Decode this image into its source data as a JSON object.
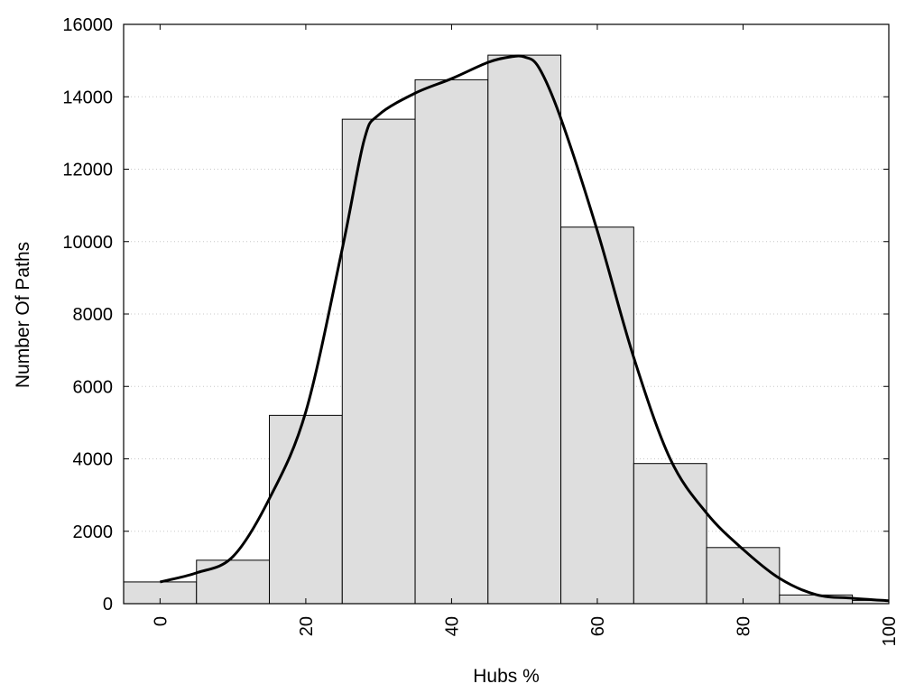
{
  "chart_data": {
    "type": "bar",
    "title": "",
    "xlabel": "Hubs %",
    "ylabel": "Number Of Paths",
    "xlim": [
      -5,
      100
    ],
    "ylim": [
      0,
      16000
    ],
    "xticks": [
      "0",
      "20",
      "40",
      "60",
      "80",
      "100"
    ],
    "yticks": [
      "0",
      "2000",
      "4000",
      "6000",
      "8000",
      "10000",
      "12000",
      "14000",
      "16000"
    ],
    "grid": "horizontal dotted",
    "legend": "none",
    "bin_width": 10,
    "bins": [
      {
        "center": 0,
        "value": 600
      },
      {
        "center": 10,
        "value": 1200
      },
      {
        "center": 20,
        "value": 5200
      },
      {
        "center": 30,
        "value": 13380
      },
      {
        "center": 40,
        "value": 14470
      },
      {
        "center": 50,
        "value": 15150
      },
      {
        "center": 60,
        "value": 10400
      },
      {
        "center": 70,
        "value": 3870
      },
      {
        "center": 80,
        "value": 1550
      },
      {
        "center": 90,
        "value": 240
      },
      {
        "center": 100,
        "value": 90
      }
    ],
    "curve": {
      "x": [
        0,
        5,
        10,
        15,
        20,
        25,
        28,
        30,
        35,
        40,
        45,
        48,
        50,
        52,
        55,
        60,
        65,
        70,
        75,
        80,
        85,
        90,
        95,
        100
      ],
      "y": [
        600,
        850,
        1300,
        2900,
        5300,
        9800,
        12800,
        13500,
        14100,
        14500,
        14950,
        15100,
        15100,
        14800,
        13400,
        10300,
        6800,
        4000,
        2500,
        1500,
        700,
        250,
        150,
        80
      ]
    },
    "colors": {
      "bar_fill": "#dedede",
      "bar_stroke": "#000000",
      "line": "#000000",
      "grid": "#c8c8c8"
    }
  }
}
